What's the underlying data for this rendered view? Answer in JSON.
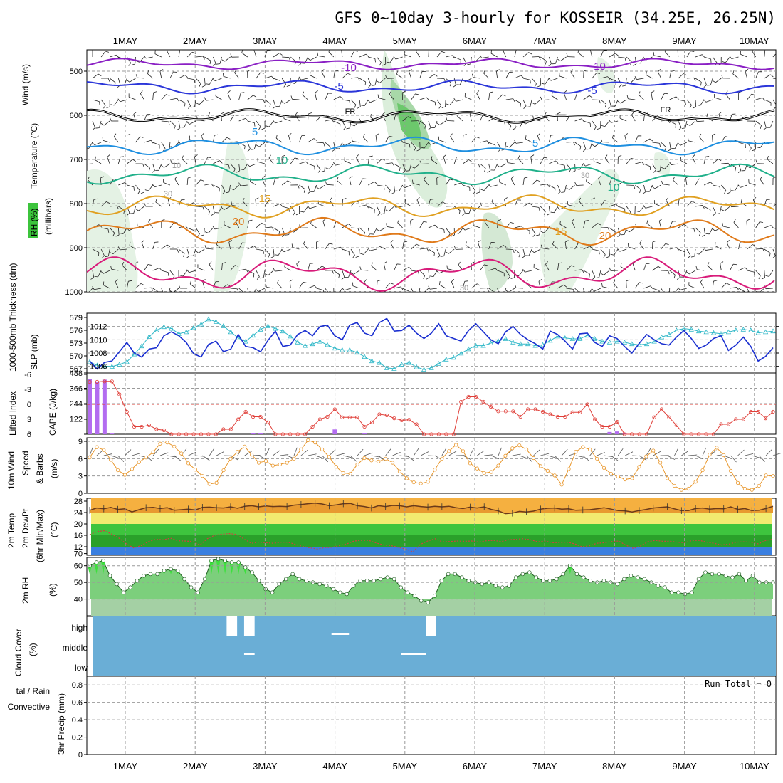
{
  "title": "GFS 0~10day 3-hourly for KOSSEIR (34.25E, 26.25N)",
  "days": [
    "1MAY",
    "2MAY",
    "3MAY",
    "4MAY",
    "5MAY",
    "6MAY",
    "7MAY",
    "8MAY",
    "9MAY",
    "10MAY"
  ],
  "colors": {
    "t_m10": "#8a1fc4",
    "t_m5": "#2b36d9",
    "t_fr": "#000000",
    "t_p5": "#1e8fe0",
    "t_p10": "#20b08a",
    "t_p15": "#e0a020",
    "t_p20": "#e07a1a",
    "t_p25": "#d81b7a",
    "slp": "#1a2fd0",
    "thick": "#30b8c8",
    "cape": "#b36cf0",
    "li": "#e0403a",
    "wind": "#e8962a",
    "cloud": "#6aaed6",
    "rh": "#5ad34a"
  },
  "panels": {
    "upper": {
      "labels": [
        "Wind (m/s)",
        "Temperature (°C)",
        "RH (%)",
        "(millibars)"
      ],
      "yticks": [
        "500",
        "600",
        "700",
        "800",
        "900",
        "1000"
      ],
      "contour_labels": [
        "-10",
        "-10",
        "-5",
        "-5",
        "FR",
        "FR",
        "5",
        "5",
        "10",
        "10",
        "15",
        "15",
        "20",
        "20",
        "30",
        "30",
        "10",
        "30"
      ]
    },
    "slp": {
      "left_label": "1000-500mb Thickness (dm)",
      "right_label": "SLP (mb)",
      "yticks_left": [
        "579",
        "576",
        "573",
        "570",
        "567"
      ],
      "yticks_right": [
        "1012",
        "1010",
        "1008",
        "1006"
      ]
    },
    "cape": {
      "left_label": "Lifted Index",
      "right_label": "CAPE (J/kg)",
      "yticks_left": [
        "-6",
        "-3",
        "0",
        "3",
        "6"
      ],
      "yticks_right": [
        "488",
        "366",
        "244",
        "122"
      ]
    },
    "wind": {
      "label_line1": "10m Wind",
      "label_line2": "Speed",
      "label_line3": "& Barbs",
      "unit": "(m/s)",
      "yticks": [
        "9",
        "6",
        "3",
        "0"
      ]
    },
    "temp": {
      "label_line1": "2m Temp",
      "label_line2": "2m DewPt",
      "label_line3": "(6hr Min/Max)",
      "unit": "(°C)",
      "yticks": [
        "28",
        "24",
        "20",
        "16",
        "12",
        "70"
      ]
    },
    "rh": {
      "label": "2m RH",
      "unit": "(%)",
      "yticks": [
        "60",
        "50",
        "40"
      ]
    },
    "cloud": {
      "label": "Cloud Cover",
      "unit": "(%)",
      "levels": [
        "high",
        "middle",
        "low"
      ]
    },
    "precip": {
      "label_line1": "tal / Rain",
      "label_line2": "Convective",
      "label_line3": "3hr Precip (mm)",
      "yticks": [
        "0.8",
        "0.6",
        "0.4",
        "0.2",
        "0"
      ],
      "run_total": "Run Total = 0"
    }
  },
  "chart_data": [
    {
      "type": "line",
      "name_ref": "SLP (mb) / 1000-500mb Thickness (dm)",
      "ylim_right": [
        1005,
        1014
      ],
      "ylim_left": [
        566,
        580
      ],
      "series": [
        {
          "name": "SLP (mb)",
          "values": [
            1006.8,
            1005.6,
            1006.6,
            1006.8,
            1008.2,
            1009.6,
            1008.0,
            1007.4,
            1008.6,
            1008.8,
            1010.6,
            1011.2,
            1010.6,
            1009.6,
            1007.9,
            1007.4,
            1009.3,
            1009.8,
            1008.2,
            1008.6,
            1010.8,
            1009.0,
            1008.8,
            1008.2,
            1009.9,
            1011.3,
            1009.0,
            1009.2,
            1010.8,
            1011.4,
            1010.6,
            1012.0,
            1012.2,
            1010.6,
            1010.0,
            1012.2,
            1012.6,
            1011.0,
            1010.6,
            1012.6,
            1013.2,
            1011.3,
            1011.4,
            1012.2,
            1011.0,
            1010.2,
            1011.0,
            1012.4,
            1010.6,
            1010.2,
            1009.8,
            1011.4,
            1012.4,
            1011.2,
            1010.0,
            1009.4,
            1011.2,
            1012.0,
            1010.8,
            1010.0,
            1009.4,
            1008.6,
            1011.3,
            1010.8,
            1009.8,
            1008.6,
            1010.9,
            1011.0,
            1009.6,
            1009.0,
            1010.6,
            1010.2,
            1009.0,
            1008.0,
            1009.5,
            1010.8,
            1010.0,
            1009.4,
            1009.2,
            1010.4,
            1011.4,
            1010.2,
            1008.7,
            1009.2,
            1010.2,
            1010.6,
            1008.4,
            1009.2,
            1010.4,
            1009.0,
            1006.8,
            1007.5,
            1008.8
          ]
        },
        {
          "name": "1000-500mb Thickness (dm)",
          "values": [
            568.6,
            567.8,
            567.6,
            567.5,
            568.0,
            568.6,
            570.4,
            572.3,
            574.5,
            576.0,
            576.8,
            576.4,
            575.2,
            575.6,
            576.6,
            577.4,
            578.6,
            578.0,
            577.0,
            575.6,
            574.2,
            573.4,
            574.8,
            576.2,
            577.0,
            576.4,
            575.8,
            574.6,
            573.2,
            572.4,
            572.8,
            573.4,
            572.6,
            571.8,
            571.4,
            571.4,
            570.8,
            569.8,
            568.8,
            568.4,
            567.2,
            567.0,
            568.0,
            568.4,
            567.4,
            566.8,
            567.2,
            568.2,
            569.2,
            569.6,
            570.6,
            571.6,
            572.4,
            572.4,
            573.0,
            573.5,
            574.0,
            573.2,
            572.8,
            572.8,
            572.4,
            572.6,
            573.6,
            574.6,
            574.2,
            574.0,
            574.0,
            574.8,
            574.0,
            573.4,
            573.2,
            573.4,
            573.2,
            572.8,
            572.6,
            572.8,
            573.4,
            574.4,
            575.0,
            576.0,
            576.4,
            576.2,
            575.8,
            575.6,
            575.4,
            575.2,
            575.6,
            576.0,
            576.2,
            576.0,
            575.4,
            575.6,
            575.8
          ]
        }
      ]
    },
    {
      "type": "bar",
      "name_ref": "CAPE (J/kg) / Lifted Index",
      "ylim_cape": [
        0,
        488
      ],
      "ylim_li": [
        6,
        -6
      ],
      "series": [
        {
          "name": "CAPE (J/kg)",
          "values": [
            440,
            420,
            435,
            5,
            0,
            0,
            0,
            0,
            0,
            0,
            0,
            0,
            0,
            0,
            0,
            0,
            0,
            0,
            0,
            0,
            0,
            0,
            8,
            8,
            0,
            0,
            0,
            0,
            0,
            0,
            0,
            0,
            0,
            38,
            0,
            0,
            0,
            10,
            0,
            0,
            0,
            0,
            0,
            0,
            0,
            0,
            0,
            0,
            0,
            0,
            0,
            0,
            0,
            0,
            0,
            0,
            0,
            0,
            0,
            0,
            0,
            0,
            0,
            0,
            0,
            0,
            0,
            0,
            0,
            0,
            18,
            22,
            10,
            0,
            0,
            0,
            0,
            0,
            0,
            0,
            0,
            0,
            0,
            0,
            0,
            0,
            0,
            0,
            0,
            0,
            0,
            0,
            0
          ]
        },
        {
          "name": "Lifted Index",
          "values": [
            -4.5,
            -4.5,
            -4.6,
            -4.6,
            -2.0,
            1.5,
            4.5,
            4.5,
            4.2,
            5.0,
            5.2,
            6.0,
            6.3,
            6.3,
            6.2,
            6.2,
            6.3,
            6.2,
            5.0,
            5.0,
            3.0,
            1.5,
            2.5,
            2.5,
            3.6,
            6.2,
            6.2,
            6.3,
            6.3,
            6.0,
            4.5,
            3.0,
            2.5,
            1.0,
            2.6,
            2.6,
            2.6,
            4.5,
            3.6,
            2.0,
            2.2,
            2.8,
            3.2,
            3.1,
            4.0,
            6.2,
            6.3,
            6.3,
            6.2,
            6.2,
            -0.5,
            -1.5,
            -1.5,
            -0.5,
            0.5,
            1.4,
            1.4,
            1.4,
            2.5,
            1.0,
            1.0,
            1.5,
            2.0,
            2.5,
            2.5,
            1.6,
            1.6,
            0.0,
            3.0,
            4.5,
            4.5,
            3.5,
            6.3,
            6.3,
            6.2,
            6.2,
            2.6,
            1.0,
            2.6,
            4.2,
            6.2,
            6.3,
            6.3,
            6.2,
            6.2,
            4.0,
            4.0,
            3.0,
            3.0,
            1.5,
            1.5,
            2.8,
            1.5
          ]
        }
      ]
    },
    {
      "type": "line",
      "name_ref": "10m Wind Speed (m/s)",
      "ylim": [
        0,
        9
      ],
      "series": [
        {
          "name": "10m Wind Speed (m/s)",
          "values": [
            6.2,
            8.0,
            7.5,
            5.8,
            4.0,
            3.2,
            4.2,
            5.4,
            6.2,
            7.1,
            8.6,
            8.8,
            8.1,
            6.9,
            5.2,
            4.1,
            3.0,
            1.6,
            1.8,
            4.0,
            6.0,
            7.2,
            8.1,
            6.7,
            5.3,
            5.6,
            4.8,
            5.0,
            5.3,
            6.0,
            7.6,
            9.2,
            8.8,
            7.6,
            6.3,
            4.6,
            3.5,
            3.4,
            5.0,
            6.1,
            5.7,
            5.5,
            6.0,
            5.3,
            3.8,
            2.6,
            1.9,
            1.7,
            2.0,
            4.1,
            6.0,
            7.3,
            8.4,
            7.3,
            5.2,
            4.3,
            3.5,
            3.7,
            4.8,
            6.5,
            7.8,
            8.3,
            7.6,
            6.1,
            4.7,
            3.9,
            3.1,
            1.5,
            4.2,
            7.2,
            8.0,
            7.6,
            6.0,
            4.4,
            3.4,
            2.9,
            2.4,
            2.6,
            4.6,
            6.4,
            7.4,
            5.3,
            2.6,
            1.3,
            0.6,
            0.8,
            2.0,
            4.0,
            6.7,
            7.9,
            6.6,
            3.9,
            1.8,
            0.8,
            0.6,
            1.3,
            3.1,
            3.0
          ]
        }
      ]
    },
    {
      "type": "line",
      "name_ref": "2m Temp / 2m DewPt (°C)",
      "ylim": [
        9,
        29
      ],
      "series": [
        {
          "name": "2m Temp (°C)",
          "values": [
            24.8,
            25.6,
            25.3,
            25.8,
            25.1,
            25.3,
            24.2,
            25.0,
            25.7,
            25.8,
            25.4,
            25.7,
            24.8,
            25.0,
            25.2,
            24.9,
            25.8,
            25.9,
            25.7,
            25.6,
            26.0,
            25.5,
            26.2,
            26.4,
            26.0,
            26.3,
            26.1,
            26.2,
            26.1,
            26.6,
            26.8,
            27.1,
            27.3,
            27.0,
            26.4,
            26.7,
            27.1,
            27.2,
            26.4,
            26.1,
            25.6,
            26.4,
            26.1,
            26.5,
            26.4,
            26.0,
            26.4,
            26.1,
            25.9,
            26.2,
            26.0,
            26.2,
            25.7,
            25.4,
            25.9,
            25.6,
            26.0,
            25.1,
            24.6,
            23.6,
            23.8,
            24.4,
            24.2,
            24.5,
            25.2,
            25.5,
            25.6,
            25.2,
            25.3,
            24.8,
            24.9,
            25.0,
            25.3,
            25.7,
            25.2,
            24.7,
            24.6,
            24.2,
            24.7,
            25.1,
            25.6,
            25.8,
            26.0,
            25.3,
            24.7,
            24.7,
            25.4,
            25.6,
            25.2,
            25.4,
            25.3,
            26.0,
            25.1,
            25.4,
            24.7,
            24.8,
            25.4,
            26.2
          ]
        },
        {
          "name": "2m DewPt (°C)",
          "values": [
            16.2,
            17.3,
            17.6,
            16.4,
            15.0,
            13.0,
            11.6,
            12.4,
            13.8,
            14.6,
            14.4,
            15.0,
            14.1,
            14.0,
            13.8,
            12.6,
            14.8,
            16.0,
            16.4,
            16.6,
            16.3,
            14.7,
            13.2,
            13.6,
            13.4,
            13.2,
            13.6,
            13.6,
            12.8,
            12.1,
            11.6,
            11.2,
            11.7,
            11.8,
            12.4,
            13.0,
            14.0,
            14.2,
            14.2,
            13.3,
            12.6,
            12.4,
            11.8,
            11.2,
            10.2,
            12.8,
            14.0,
            14.8,
            13.7,
            13.8,
            14.0,
            13.9,
            14.0,
            13.6,
            14.1,
            14.2,
            13.8,
            14.4,
            14.6,
            14.8,
            14.4,
            13.7,
            14.0,
            13.4,
            13.5,
            13.6,
            13.0,
            12.0,
            12.3,
            13.2,
            13.4,
            13.8,
            14.0,
            12.5,
            11.4,
            12.3,
            13.8,
            14.2,
            13.9,
            13.9,
            13.6,
            13.4,
            14.2,
            14.2,
            13.6,
            13.2,
            12.6,
            12.9,
            13.6,
            13.7,
            13.6,
            13.0,
            14.2,
            14.6
          ]
        }
      ]
    },
    {
      "type": "area",
      "name_ref": "2m RH (%)",
      "ylim": [
        30,
        65
      ],
      "series": [
        {
          "name": "2m RH (%)",
          "values": [
            60,
            62,
            63,
            54,
            49,
            44,
            47,
            51,
            54,
            55,
            55,
            57,
            58,
            57,
            52,
            47,
            44,
            52,
            63,
            64,
            63,
            62,
            62,
            59,
            56,
            51,
            46,
            44,
            49,
            52,
            55,
            52,
            51,
            50,
            49,
            48,
            46,
            44,
            43,
            48,
            51,
            51,
            51,
            52,
            53,
            52,
            47,
            44,
            42,
            39,
            38,
            42,
            51,
            55,
            55,
            53,
            51,
            50,
            49,
            50,
            48,
            47,
            48,
            53,
            55,
            56,
            53,
            51,
            51,
            52,
            55,
            60,
            55,
            53,
            51,
            50,
            51,
            50,
            49,
            52,
            54,
            53,
            52,
            50,
            48,
            47,
            44,
            44,
            43,
            44,
            52,
            56,
            55,
            55,
            54,
            53,
            55,
            51,
            54,
            50,
            50,
            50
          ]
        }
      ]
    },
    {
      "type": "bar",
      "name_ref": "Cloud Cover (%)",
      "levels": [
        "high",
        "middle",
        "low"
      ],
      "breaks": [
        {
          "level": "high",
          "day_start": 2.45,
          "day_end": 2.6
        },
        {
          "level": "high",
          "day_start": 2.7,
          "day_end": 2.85
        },
        {
          "level": "middle",
          "day_start": 2.7,
          "day_end": 2.85
        },
        {
          "level": "high",
          "day_start": 3.95,
          "day_end": 4.2
        },
        {
          "level": "middle",
          "day_start": 4.95,
          "day_end": 5.3
        },
        {
          "level": "high",
          "day_start": 5.3,
          "day_end": 5.45
        }
      ]
    },
    {
      "type": "bar",
      "name_ref": "3hr Precip (mm)",
      "ylim": [
        0,
        0.9
      ],
      "values": []
    }
  ]
}
